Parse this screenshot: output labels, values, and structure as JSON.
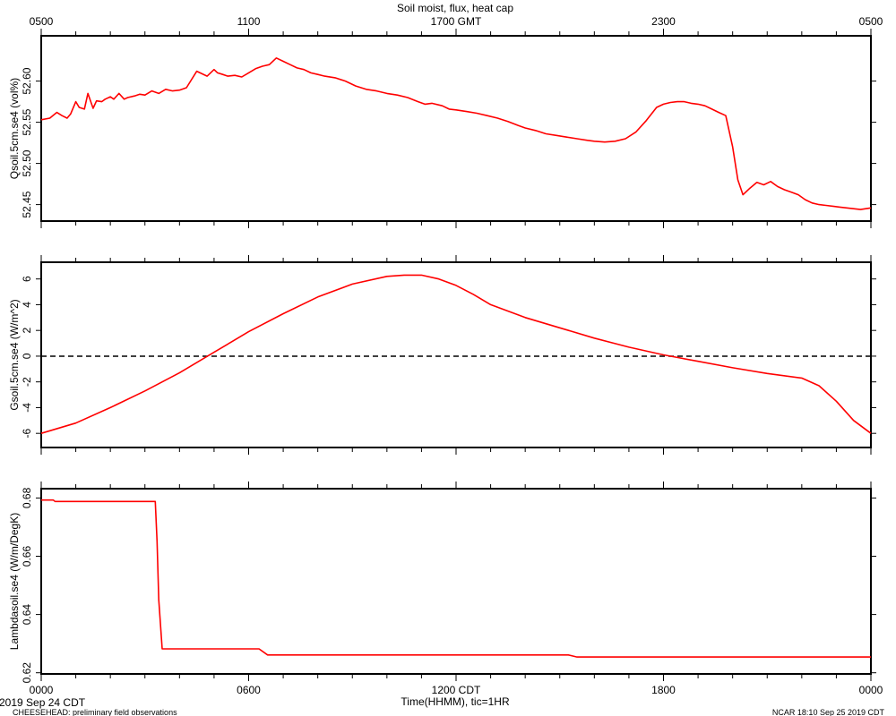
{
  "header": {
    "title": "Soil moist, flux, heat cap",
    "gmt_ticks": [
      "0500",
      "1100",
      "1700 GMT",
      "2300",
      "0500"
    ]
  },
  "footer": {
    "date_label": "2019 Sep 24 CDT",
    "project_label": "CHEESEHEAD: preliminary field observations",
    "stamp_label": "NCAR 18:10 Sep 25 2019 CDT",
    "xlabel": "Time(HHMM), tic=1HR",
    "cdt_ticks": [
      "0000",
      "0600",
      "1200 CDT",
      "1800",
      "0000"
    ]
  },
  "colors": {
    "series": "#ff0000",
    "axis": "#000000",
    "zero_line": "#000000"
  },
  "chart_data": [
    {
      "type": "line",
      "ylabel": "Qsoil.5cm.se4 (vol%)",
      "ylim": [
        52.43,
        52.655
      ],
      "yticks": [
        52.45,
        52.5,
        52.55,
        52.6
      ],
      "ytick_labels": [
        "52.45",
        "52.50",
        "52.55",
        "52.60"
      ],
      "xlim": [
        0,
        24
      ],
      "series": [
        {
          "x": [
            0,
            0.25,
            0.45,
            0.6,
            0.75,
            0.85,
            1.0,
            1.1,
            1.25,
            1.35,
            1.5,
            1.6,
            1.75,
            1.85,
            2.0,
            2.1,
            2.25,
            2.4,
            2.5,
            2.7,
            2.85,
            3.0,
            3.2,
            3.4,
            3.6,
            3.8,
            4.0,
            4.2,
            4.5,
            4.8,
            5.0,
            5.1,
            5.25,
            5.4,
            5.6,
            5.8,
            6.0,
            6.2,
            6.4,
            6.6,
            6.8,
            7.0,
            7.2,
            7.4,
            7.6,
            7.8,
            8.0,
            8.2,
            8.5,
            8.8,
            9.1,
            9.4,
            9.7,
            10.0,
            10.3,
            10.6,
            10.9,
            11.1,
            11.3,
            11.6,
            11.8,
            12.0,
            12.3,
            12.6,
            12.9,
            13.2,
            13.5,
            13.8,
            14.0,
            14.3,
            14.6,
            14.9,
            15.2,
            15.5,
            15.8,
            16.0,
            16.3,
            16.6,
            16.9,
            17.2,
            17.5,
            17.8,
            18.0,
            18.2,
            18.4,
            18.6,
            18.8,
            19.0,
            19.2,
            19.4,
            19.6,
            19.8,
            20.0,
            20.15,
            20.3,
            20.5,
            20.7,
            20.9,
            21.1,
            21.3,
            21.5,
            21.7,
            21.9,
            22.1,
            22.3,
            22.5,
            22.7,
            22.9,
            23.1,
            23.3,
            23.5,
            23.7,
            23.85,
            24.0
          ],
          "y": [
            52.553,
            52.555,
            52.562,
            52.558,
            52.555,
            52.56,
            52.575,
            52.568,
            52.566,
            52.585,
            52.567,
            52.576,
            52.575,
            52.578,
            52.581,
            52.578,
            52.585,
            52.578,
            52.58,
            52.582,
            52.584,
            52.583,
            52.588,
            52.585,
            52.59,
            52.588,
            52.589,
            52.592,
            52.612,
            52.606,
            52.614,
            52.61,
            52.608,
            52.606,
            52.607,
            52.605,
            52.61,
            52.615,
            52.618,
            52.62,
            52.628,
            52.624,
            52.62,
            52.616,
            52.614,
            52.61,
            52.608,
            52.606,
            52.604,
            52.6,
            52.594,
            52.59,
            52.588,
            52.585,
            52.583,
            52.58,
            52.575,
            52.572,
            52.573,
            52.57,
            52.566,
            52.565,
            52.563,
            52.561,
            52.558,
            52.555,
            52.551,
            52.546,
            52.543,
            52.54,
            52.536,
            52.534,
            52.532,
            52.53,
            52.528,
            52.527,
            52.526,
            52.527,
            52.53,
            52.538,
            52.552,
            52.568,
            52.572,
            52.574,
            52.575,
            52.575,
            52.573,
            52.572,
            52.57,
            52.566,
            52.562,
            52.558,
            52.52,
            52.48,
            52.462,
            52.47,
            52.477,
            52.474,
            52.478,
            52.472,
            52.468,
            52.465,
            52.462,
            52.456,
            52.452,
            52.45,
            52.449,
            52.448,
            52.447,
            52.446,
            52.445,
            52.444,
            52.445,
            52.446
          ]
        }
      ]
    },
    {
      "type": "line",
      "ylabel": "Gsoil.5cm.se4 (W/m^2)",
      "ylim": [
        -7.1,
        7.3
      ],
      "yticks": [
        -6,
        -4,
        -2,
        0,
        2,
        4,
        6
      ],
      "ytick_labels": [
        "-6",
        "-4",
        "-2",
        "0",
        "2",
        "4",
        "6"
      ],
      "xlim": [
        0,
        24
      ],
      "zero_line": true,
      "series": [
        {
          "x": [
            0,
            1,
            2,
            3,
            4,
            5,
            6,
            7,
            8,
            9,
            10,
            10.5,
            11,
            11.5,
            12,
            12.5,
            13,
            14,
            15,
            16,
            17,
            18,
            19,
            20,
            21,
            22,
            22.5,
            23,
            23.5,
            24
          ],
          "y": [
            -6.0,
            -5.2,
            -4.0,
            -2.7,
            -1.3,
            0.3,
            1.9,
            3.3,
            4.6,
            5.6,
            6.2,
            6.3,
            6.3,
            6.0,
            5.5,
            4.8,
            4.0,
            3.0,
            2.2,
            1.4,
            0.7,
            0.1,
            -0.4,
            -0.9,
            -1.35,
            -1.7,
            -2.3,
            -3.5,
            -5.0,
            -6.0
          ]
        }
      ]
    },
    {
      "type": "line",
      "ylabel": "Lambdasoil.se4 (W/m/DegK)",
      "ylim": [
        0.6196,
        0.6832
      ],
      "yticks": [
        0.62,
        0.64,
        0.66,
        0.68
      ],
      "ytick_labels": [
        "0.62",
        "0.64",
        "0.66",
        "0.68"
      ],
      "xlim": [
        0,
        24
      ],
      "series": [
        {
          "x": [
            0,
            0.35,
            0.4,
            3.3,
            3.35,
            3.4,
            3.5,
            6.3,
            6.55,
            12.0,
            15.25,
            15.5,
            24.0
          ],
          "y": [
            0.6793,
            0.6793,
            0.6788,
            0.6788,
            0.665,
            0.645,
            0.6282,
            0.6282,
            0.6261,
            0.6261,
            0.6261,
            0.6254,
            0.6254
          ]
        }
      ]
    }
  ]
}
